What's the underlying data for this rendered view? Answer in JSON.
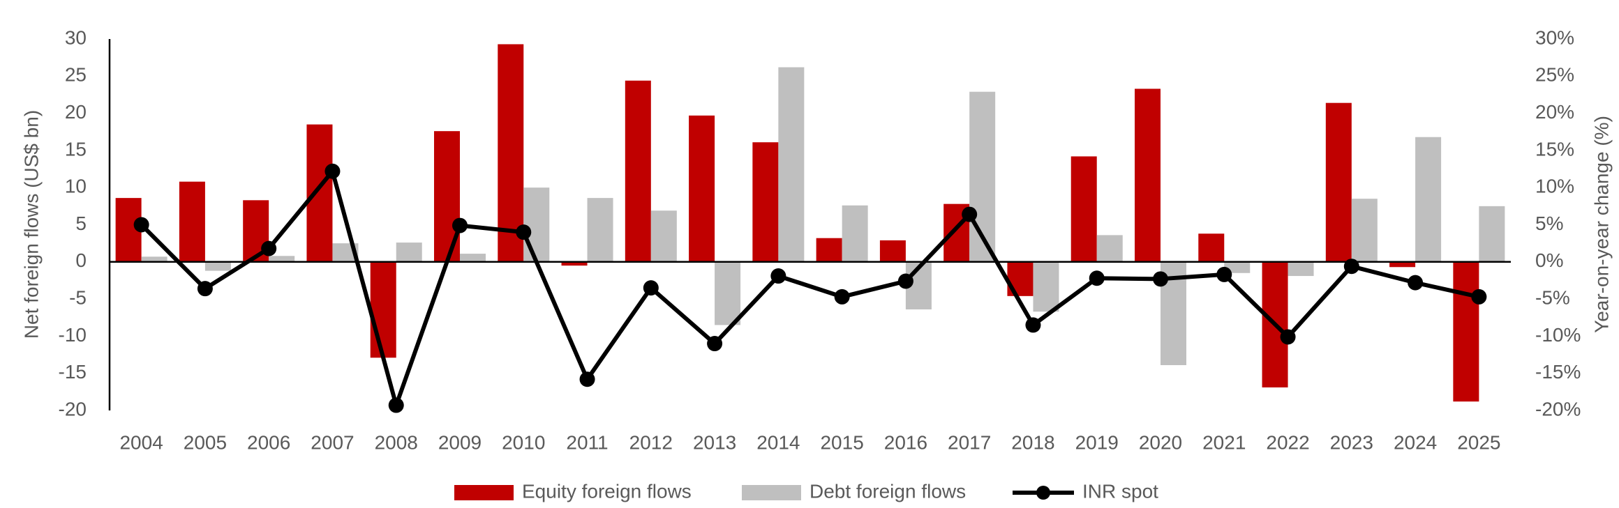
{
  "chart_data": {
    "type": "bar-line",
    "categories": [
      "2004",
      "2005",
      "2006",
      "2007",
      "2008",
      "2009",
      "2010",
      "2011",
      "2012",
      "2013",
      "2014",
      "2015",
      "2016",
      "2017",
      "2018",
      "2019",
      "2020",
      "2021",
      "2022",
      "2023",
      "2024",
      "2025"
    ],
    "y_label": "Net foreign flows (US$ bn)",
    "y2_label": "Year-on-year change (%)",
    "ylim": [
      -20,
      30
    ],
    "yticks": [
      -20,
      -15,
      -10,
      -5,
      0,
      5,
      10,
      15,
      20,
      25,
      30
    ],
    "y2lim": [
      -20,
      30
    ],
    "y2ticks": [
      {
        "value": -20,
        "label": "-20%"
      },
      {
        "value": -15,
        "label": "-15%"
      },
      {
        "value": -10,
        "label": "-10%"
      },
      {
        "value": -5,
        "label": "-5%"
      },
      {
        "value": 0,
        "label": "0%"
      },
      {
        "value": 5,
        "label": "5%"
      },
      {
        "value": 10,
        "label": "10%"
      },
      {
        "value": 15,
        "label": "15%"
      },
      {
        "value": 20,
        "label": "20%"
      },
      {
        "value": 25,
        "label": "25%"
      },
      {
        "value": 30,
        "label": "30%"
      }
    ],
    "grid": false,
    "legend": "bottom",
    "series": [
      {
        "name": "Equity foreign flows",
        "type": "bar",
        "color": "#c00000",
        "values": [
          8.6,
          10.8,
          8.3,
          18.5,
          -12.9,
          17.6,
          29.3,
          -0.5,
          24.4,
          19.7,
          16.1,
          3.2,
          2.9,
          7.8,
          -4.6,
          14.2,
          23.3,
          3.8,
          -16.9,
          21.4,
          -0.7,
          -18.8
        ]
      },
      {
        "name": "Debt foreign flows",
        "type": "bar",
        "color": "#bfbfbf",
        "values": [
          0.7,
          -1.2,
          0.8,
          2.5,
          2.6,
          1.1,
          10.0,
          8.6,
          6.9,
          -8.5,
          26.2,
          7.6,
          -6.4,
          22.9,
          -6.7,
          3.6,
          -13.9,
          -1.5,
          -1.9,
          8.5,
          16.8,
          7.5
        ]
      },
      {
        "name": "INR spot",
        "type": "line",
        "axis": "y2",
        "color": "#000000",
        "values": [
          5.0,
          -3.6,
          1.8,
          12.2,
          -19.3,
          4.9,
          4.0,
          -15.8,
          -3.5,
          -11.0,
          -1.9,
          -4.7,
          -2.6,
          6.4,
          -8.5,
          -2.2,
          -2.3,
          -1.7,
          -10.1,
          -0.6,
          -2.8,
          -4.7
        ]
      }
    ]
  }
}
